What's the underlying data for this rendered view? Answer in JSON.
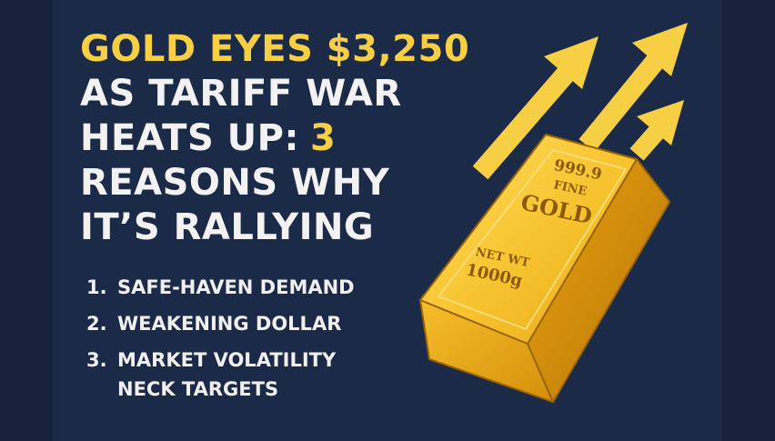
{
  "headline": {
    "accent_color": "#f7cf45",
    "lines": [
      [
        {
          "text": "GOLD EYES $3,250",
          "accent": true
        }
      ],
      [
        {
          "text": "AS TARIFF WAR",
          "accent": false
        }
      ],
      [
        {
          "text": "HEATS UP:",
          "accent": false
        },
        {
          "text": "3",
          "accent": true
        }
      ],
      [
        {
          "text": "REASONS WHY",
          "accent": false
        }
      ],
      [
        {
          "text": "IT’S RALLYING",
          "accent": false
        }
      ]
    ]
  },
  "reasons": [
    {
      "number": "1.",
      "text": "SAFE-HAVEN DEMAND"
    },
    {
      "number": "2.",
      "text": "WEAKENING DOLLAR"
    },
    {
      "number": "3.",
      "text": "MARKET VOLATILITY"
    }
  ],
  "footer": "NECK TARGETS",
  "gold_bar": {
    "purity": "999.9",
    "fine": "FINE",
    "metal": "GOLD",
    "weight_label": "NET WT",
    "weight": "1000g"
  }
}
